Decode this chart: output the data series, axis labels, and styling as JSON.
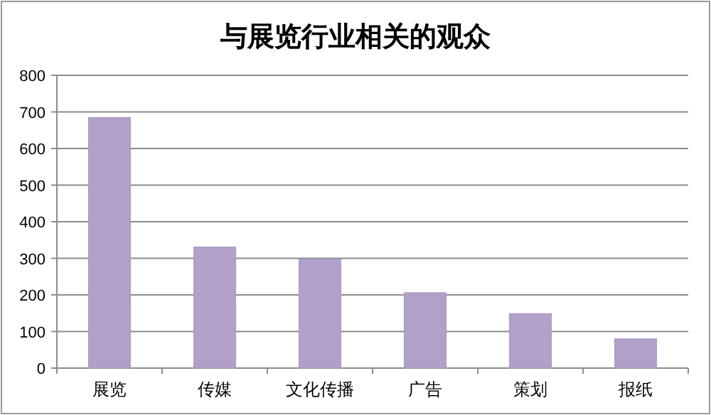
{
  "chart_data": {
    "type": "bar",
    "title": "与展览行业相关的观众",
    "categories": [
      "展览",
      "传媒",
      "文化传播",
      "广告",
      "策划",
      "报纸"
    ],
    "values": [
      685,
      331,
      298,
      206,
      149,
      80
    ],
    "color": "#b1a0c7",
    "ylim": [
      0,
      800
    ],
    "yticks": [
      0,
      100,
      200,
      300,
      400,
      500,
      600,
      700,
      800
    ],
    "grid": "y"
  }
}
